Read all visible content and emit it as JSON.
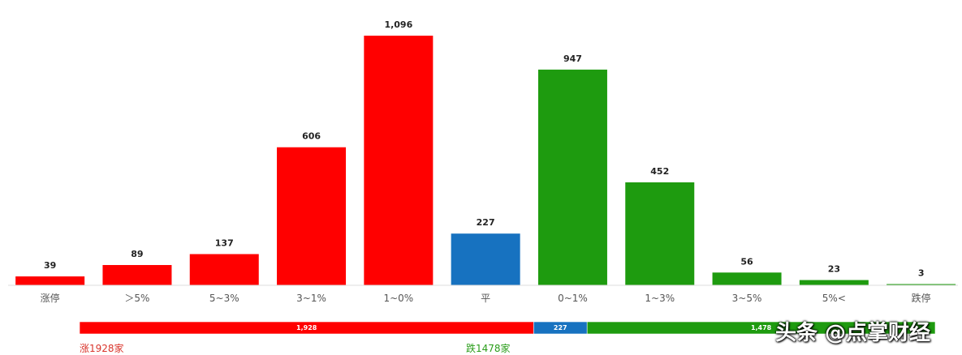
{
  "chart_data": {
    "type": "bar",
    "categories": [
      "涨停",
      "＞5%",
      "5~3%",
      "3~1%",
      "1~0%",
      "平",
      "0~1%",
      "1~3%",
      "3~5%",
      "5%<",
      "跌停"
    ],
    "values": [
      39,
      89,
      137,
      606,
      1096,
      227,
      947,
      452,
      56,
      23,
      3
    ],
    "value_labels": [
      "39",
      "89",
      "137",
      "606",
      "1,096",
      "227",
      "947",
      "452",
      "56",
      "23",
      "3"
    ],
    "bar_colors": [
      "#ff0000",
      "#ff0000",
      "#ff0000",
      "#ff0000",
      "#ff0000",
      "#1772c0",
      "#1e9b0f",
      "#1e9b0f",
      "#1e9b0f",
      "#1e9b0f",
      "#1e9b0f"
    ],
    "ylim": [
      0,
      1096
    ]
  },
  "summary_bar": {
    "segments": [
      {
        "label": "1,928",
        "value": 1928,
        "color": "#ff0000"
      },
      {
        "label": "227",
        "value": 227,
        "color": "#1772c0"
      },
      {
        "label": "1,478",
        "value": 1478,
        "color": "#1e9b0f"
      }
    ]
  },
  "legend": {
    "up": "涨1928家",
    "down": "跌1478家"
  },
  "watermark": "头条 @点掌财经"
}
